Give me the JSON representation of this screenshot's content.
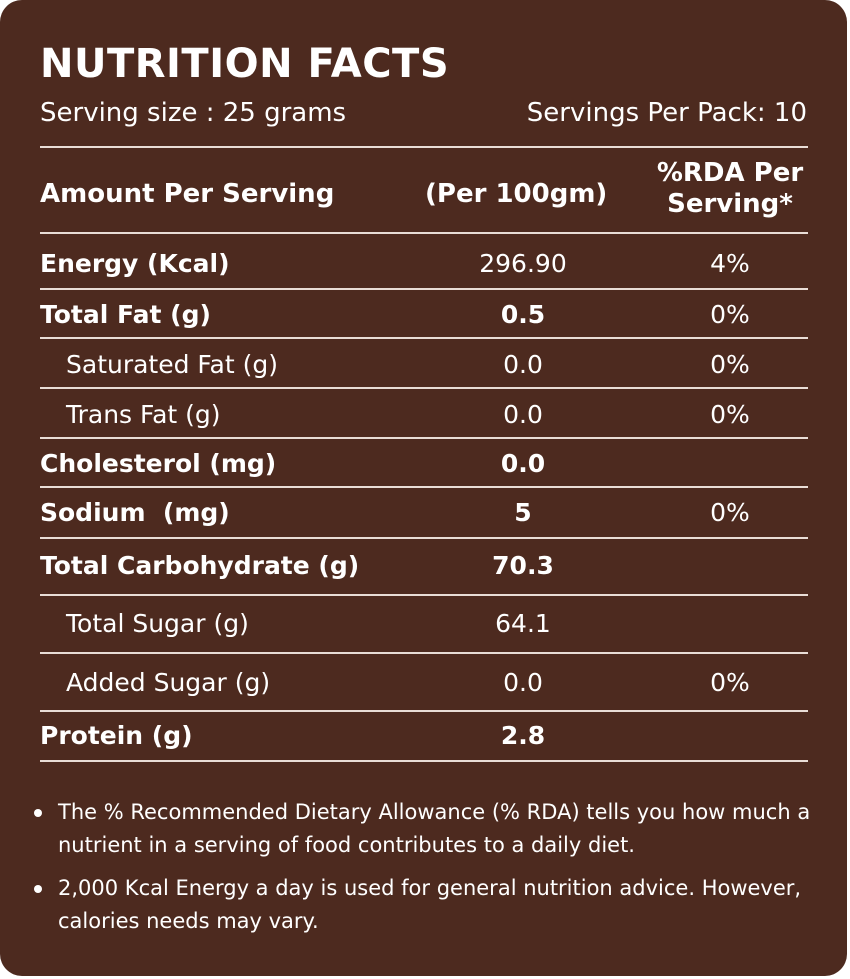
{
  "title": "NUTRITION FACTS",
  "serving_size": "Serving size : 25 grams",
  "servings_per_pack": "Servings Per Pack: 10",
  "headers": {
    "amount": "Amount Per Serving",
    "per100": "(Per 100gm)",
    "rda": "%RDA Per Serving*"
  },
  "rows": [
    {
      "label": "Energy (Kcal)",
      "value": "296.90",
      "rda": "4%"
    },
    {
      "label": "Total Fat (g)",
      "value": "0.5",
      "rda": "0%"
    },
    {
      "label": "Saturated Fat (g)",
      "value": "0.0",
      "rda": "0%"
    },
    {
      "label": "Trans Fat (g)",
      "value": "0.0",
      "rda": "0%"
    },
    {
      "label": "Cholesterol (mg)",
      "value": "0.0",
      "rda": ""
    },
    {
      "label": "Sodium  (mg)",
      "value": "5",
      "rda": "0%"
    },
    {
      "label": "Total Carbohydrate (g)",
      "value": "70.3",
      "rda": ""
    },
    {
      "label": "Total Sugar (g)",
      "value": "64.1",
      "rda": ""
    },
    {
      "label": "Added Sugar (g)",
      "value": "0.0",
      "rda": "0%"
    },
    {
      "label": "Protein (g)",
      "value": "2.8",
      "rda": ""
    }
  ],
  "notes": [
    "The % Recommended Dietary Allowance (% RDA) tells you how much a nutrient in a serving of food contributes to a daily diet.",
    "2,000 Kcal Energy a day is used for general nutrition advice. However, calories needs may vary."
  ],
  "colors": {
    "background": "#4d2a1f",
    "text": "#ffffff"
  }
}
